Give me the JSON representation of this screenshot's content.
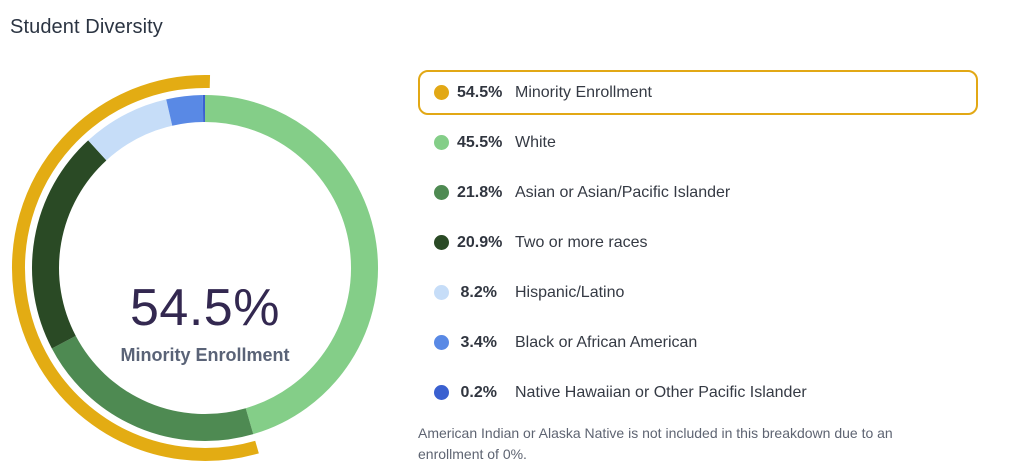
{
  "title": "Student Diversity",
  "chart_data": {
    "type": "donut",
    "title": "Student Diversity",
    "center_value": "54.5%",
    "center_label": "Minority Enrollment",
    "layout": {
      "start": "12 o'clock",
      "direction": "clockwise",
      "legend_position": "right"
    },
    "segments": [
      {
        "label": "White",
        "value": 45.5,
        "color": "#84CE88"
      },
      {
        "label": "Asian or Asian/Pacific Islander",
        "value": 21.8,
        "color": "#4E8A52"
      },
      {
        "label": "Two or more races",
        "value": 20.9,
        "color": "#2A4A25"
      },
      {
        "label": "Hispanic/Latino",
        "value": 8.2,
        "color": "#C6DDF8"
      },
      {
        "label": "Black or African American",
        "value": 3.4,
        "color": "#5989E5"
      },
      {
        "label": "Native Hawaiian or Other Pacific Islander",
        "value": 0.2,
        "color": "#3A60D0"
      }
    ],
    "outer_arc": {
      "label": "Minority Enrollment",
      "value": 54.5,
      "color": "#E3AC13"
    }
  },
  "legend": {
    "items": [
      {
        "pct": "54.5%",
        "value": 54.5,
        "label": "Minority Enrollment",
        "color": "#E2A815",
        "highlighted": true
      },
      {
        "pct": "45.5%",
        "value": 45.5,
        "label": "White",
        "color": "#84CE88",
        "highlighted": false
      },
      {
        "pct": "21.8%",
        "value": 21.8,
        "label": "Asian or Asian/Pacific Islander",
        "color": "#4E8A52",
        "highlighted": false
      },
      {
        "pct": "20.9%",
        "value": 20.9,
        "label": "Two or more races",
        "color": "#2A4A25",
        "highlighted": false
      },
      {
        "pct": "8.2%",
        "value": 8.2,
        "label": "Hispanic/Latino",
        "color": "#C6DDF8",
        "highlighted": false
      },
      {
        "pct": "3.4%",
        "value": 3.4,
        "label": "Black or African American",
        "color": "#5989E5",
        "highlighted": false
      },
      {
        "pct": "0.2%",
        "value": 0.2,
        "label": "Native Hawaiian or Other Pacific Islander",
        "color": "#3A60D0",
        "highlighted": false
      }
    ]
  },
  "footnote": "American Indian or Alaska Native is not included in this breakdown due to an enrollment of 0%."
}
